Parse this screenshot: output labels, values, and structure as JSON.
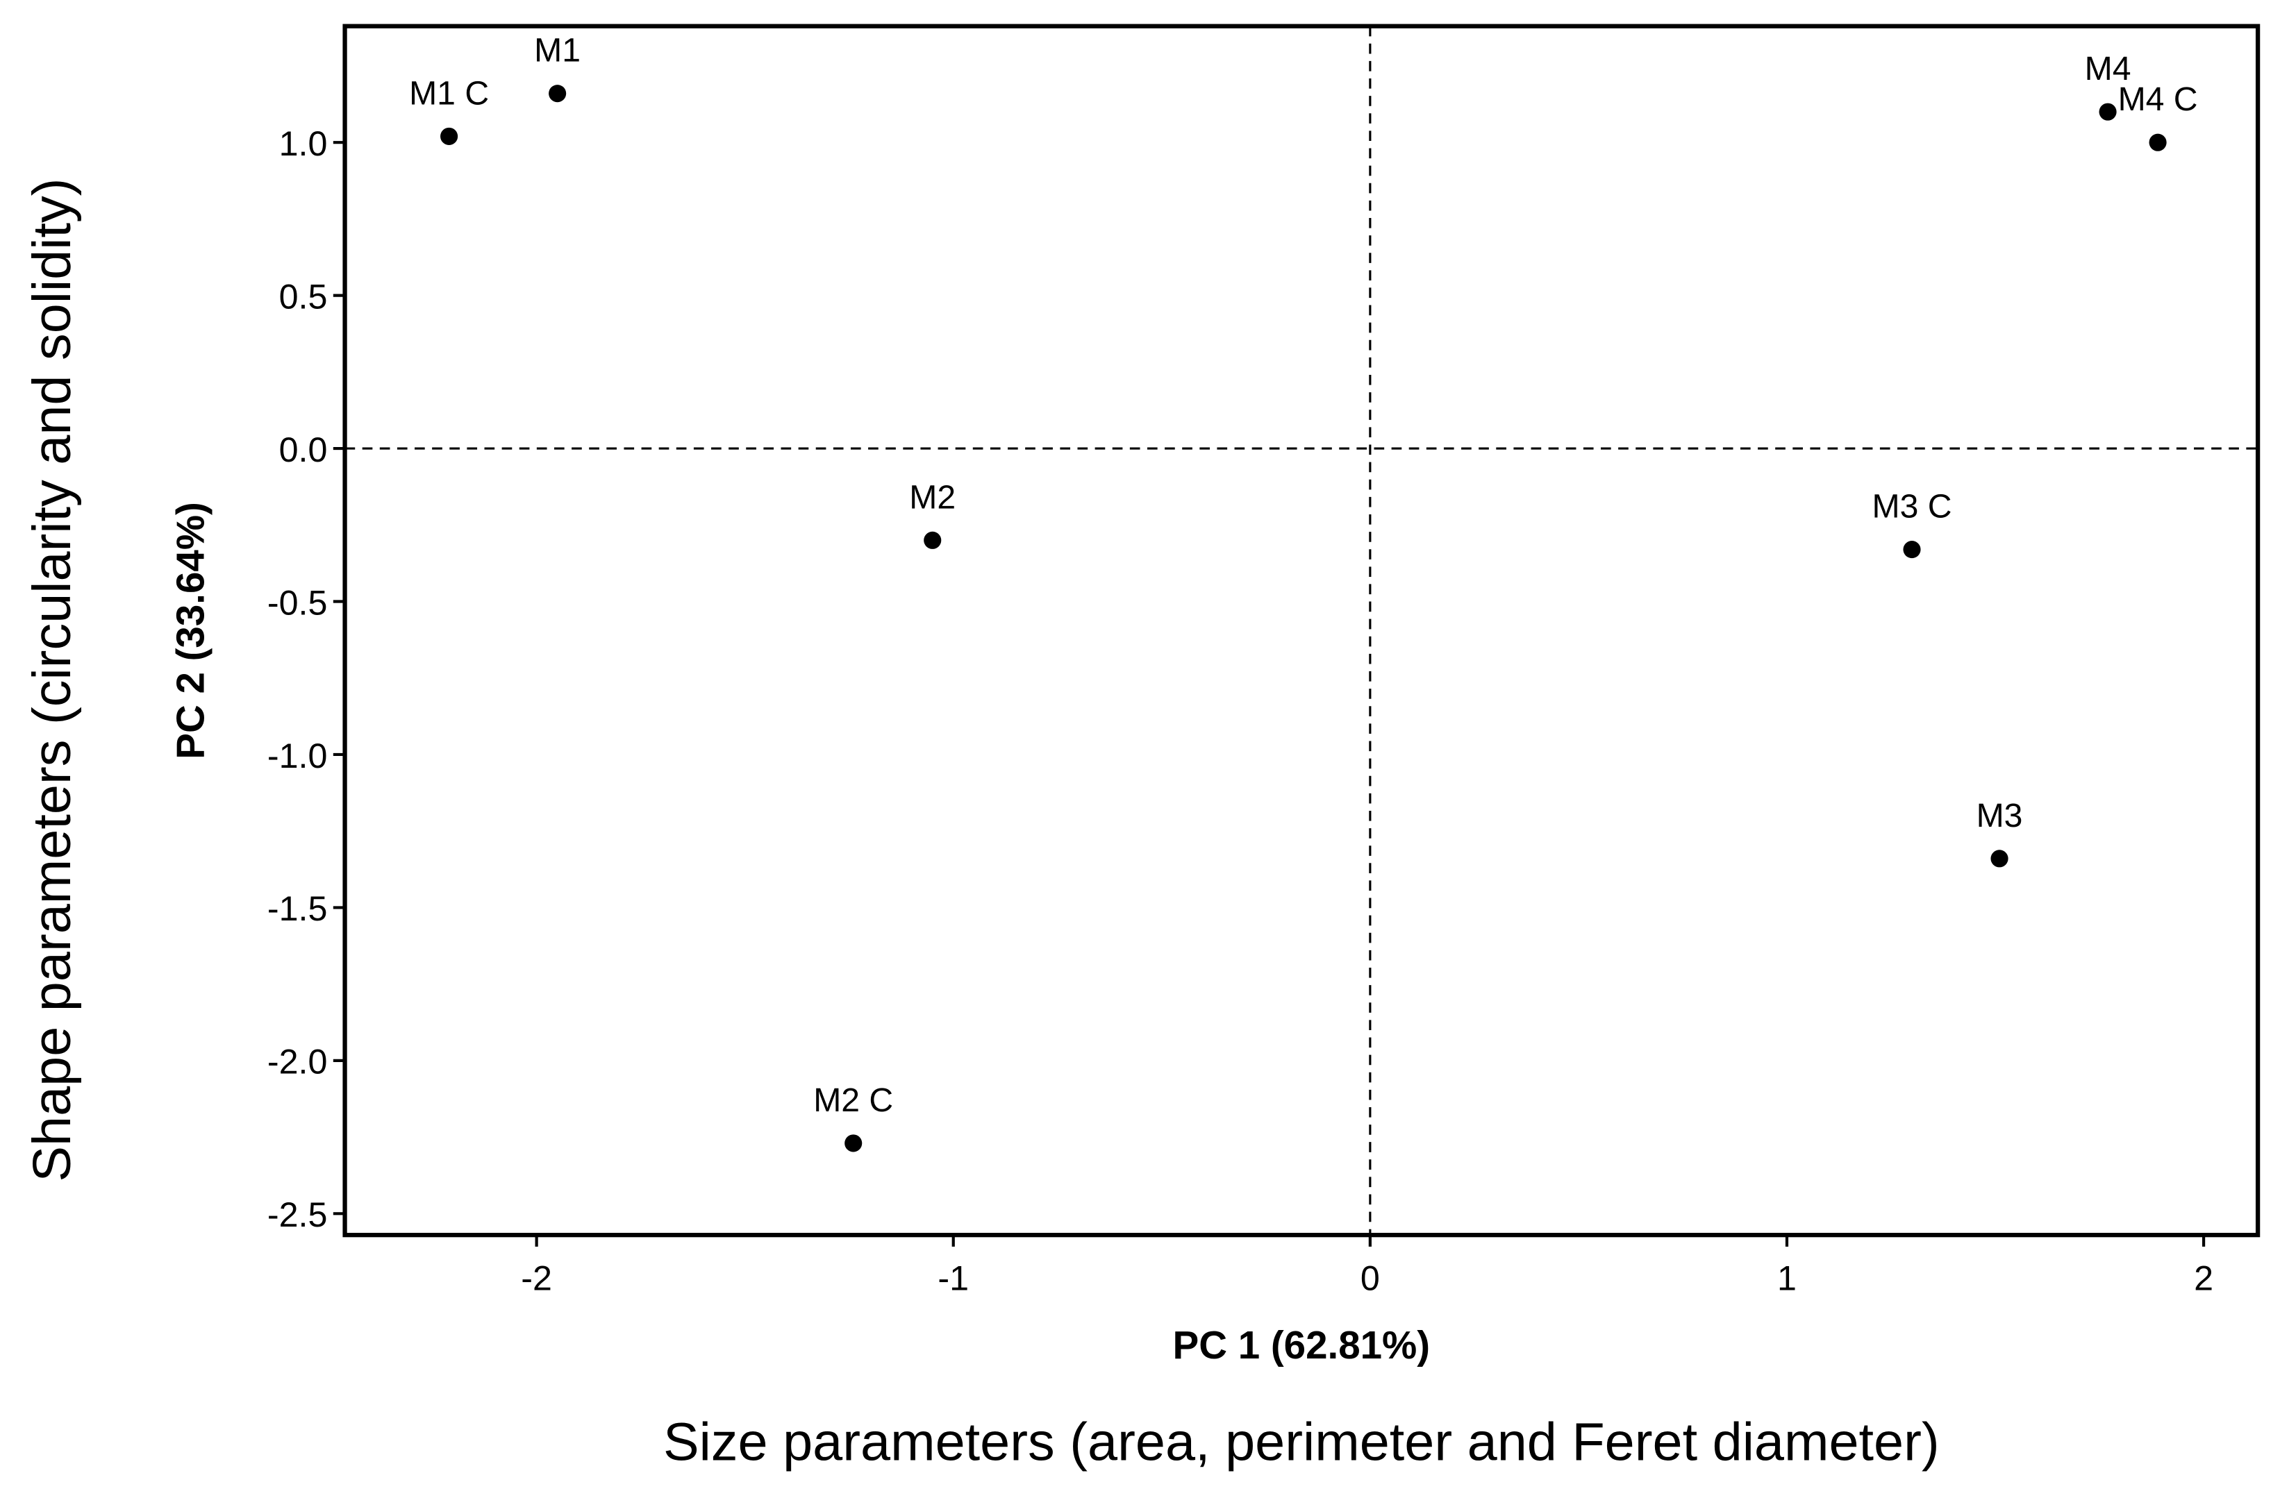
{
  "chart_data": {
    "type": "scatter",
    "xlabel": "PC 1 (62.81%)",
    "xlabel_description": "Size parameters (area, perimeter and Feret diameter)",
    "ylabel": "PC 2 (33.64%)",
    "ylabel_description": "Shape parameters (circularity and solidity)",
    "point_labels": [
      "M1 C",
      "M1",
      "M2",
      "M2 C",
      "M3 C",
      "M3",
      "M4",
      "M4 C"
    ],
    "x": [
      -2.21,
      -1.95,
      -1.05,
      -1.24,
      1.3,
      1.51,
      1.77,
      1.89
    ],
    "values": [
      1.02,
      1.16,
      -0.3,
      -2.27,
      -0.33,
      -1.34,
      1.1,
      1.0
    ],
    "color": "#000000",
    "xlim": [
      -2.46,
      2.13
    ],
    "ylim": [
      -2.57,
      1.38
    ],
    "xticks": [
      -2,
      -1,
      0,
      1,
      2
    ],
    "yticks": [
      {
        "value": 1.0,
        "label": "1.0"
      },
      {
        "value": 0.5,
        "label": "0.5"
      },
      {
        "value": 0.0,
        "label": "0.0"
      },
      {
        "value": -0.5,
        "label": "-0.5"
      },
      {
        "value": -1.0,
        "label": "-1.0"
      },
      {
        "value": -1.5,
        "label": "-1.5"
      },
      {
        "value": -2.0,
        "label": "-2.0"
      },
      {
        "value": -2.5,
        "label": "-2.5"
      }
    ],
    "reference_x": [
      0
    ],
    "reference_y": [
      0
    ],
    "grid": false
  }
}
